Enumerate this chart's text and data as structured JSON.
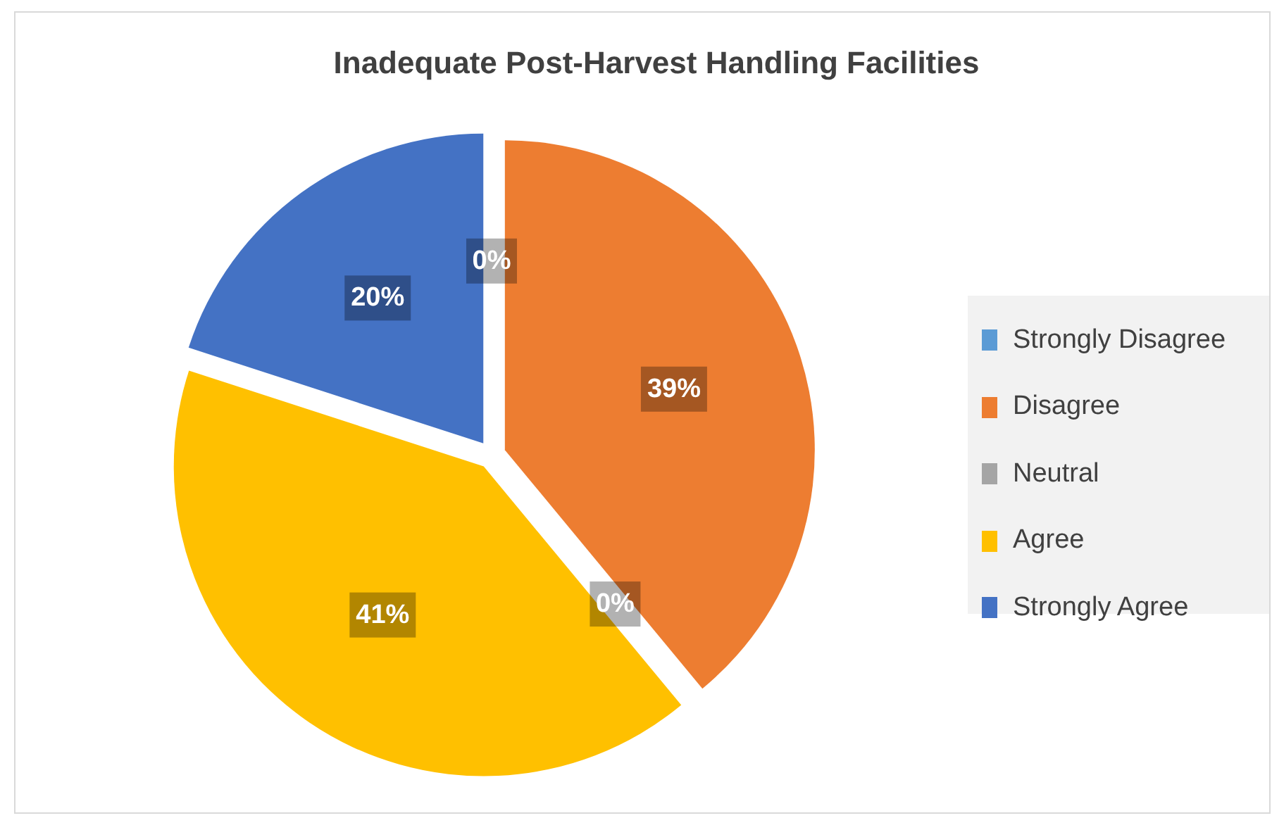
{
  "chart_data": {
    "type": "pie",
    "title": "Inadequate Post-Harvest Handling Facilities",
    "categories": [
      "Strongly Disagree",
      "Disagree",
      "Neutral",
      "Agree",
      "Strongly Agree"
    ],
    "values": [
      0,
      39,
      0,
      41,
      20
    ],
    "colors": [
      "#5b9bd5",
      "#ed7d31",
      "#a5a5a5",
      "#ffc000",
      "#4472c4"
    ],
    "value_labels": [
      "0%",
      "39%",
      "0%",
      "41%",
      "20%"
    ],
    "legend": "right"
  }
}
